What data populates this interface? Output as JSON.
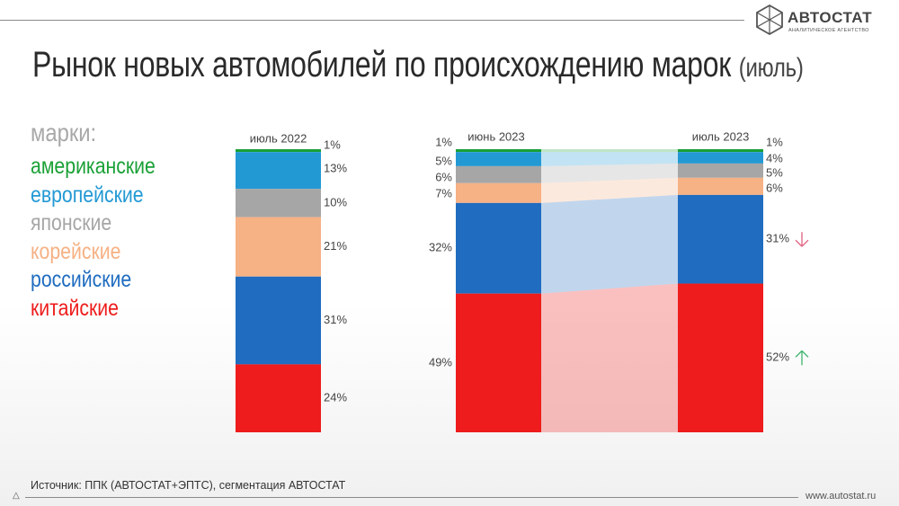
{
  "header": {
    "title": "Рынок новых автомобилей по происхождению марок",
    "title_note": "(июль)"
  },
  "logo": {
    "name": "АВТОСТАТ",
    "subtitle": "АНАЛИТИЧЕСКОЕ АГЕНТСТВО"
  },
  "legend": {
    "title": "марки:",
    "items": [
      {
        "label": "американские",
        "color": "#1aa036"
      },
      {
        "label": "европейские",
        "color": "#2399d4"
      },
      {
        "label": "японские",
        "color": "#a6a6a6"
      },
      {
        "label": "корейские",
        "color": "#f6b184"
      },
      {
        "label": "российские",
        "color": "#1f6cc0"
      },
      {
        "label": "китайские",
        "color": "#ee1c1c"
      }
    ]
  },
  "footer": {
    "source": "Источник: ППК (АВТОСТАТ+ЭПТС), сегментация АВТОСТАТ",
    "site": "www.autostat.ru"
  },
  "chart_data": [
    {
      "type": "bar",
      "stacked": true,
      "categories": [
        "июль 2022"
      ],
      "series": [
        {
          "name": "американские",
          "values": [
            1
          ],
          "label": "1%"
        },
        {
          "name": "европейские",
          "values": [
            13
          ],
          "label": "13%"
        },
        {
          "name": "японские",
          "values": [
            10
          ],
          "label": "10%"
        },
        {
          "name": "корейские",
          "values": [
            21
          ],
          "label": "21%"
        },
        {
          "name": "российские",
          "values": [
            31
          ],
          "label": "31%"
        },
        {
          "name": "китайские",
          "values": [
            24
          ],
          "label": "24%"
        }
      ],
      "ylim": [
        0,
        100
      ]
    },
    {
      "type": "bar",
      "stacked": true,
      "connected": true,
      "categories": [
        "июнь 2023",
        "июль 2023"
      ],
      "series": [
        {
          "name": "американские",
          "values": [
            1,
            1
          ],
          "labels": [
            "1%",
            "1%"
          ]
        },
        {
          "name": "европейские",
          "values": [
            5,
            4
          ],
          "labels": [
            "5%",
            "4%"
          ]
        },
        {
          "name": "японские",
          "values": [
            6,
            5
          ],
          "labels": [
            "6%",
            "5%"
          ]
        },
        {
          "name": "корейские",
          "values": [
            7,
            6
          ],
          "labels": [
            "7%",
            "6%"
          ]
        },
        {
          "name": "российские",
          "values": [
            32,
            31
          ],
          "labels": [
            "32%",
            "31%"
          ]
        },
        {
          "name": "китайские",
          "values": [
            49,
            52
          ],
          "labels": [
            "49%",
            "52%"
          ]
        }
      ],
      "trend_markers": [
        {
          "series": "российские",
          "direction": "down",
          "color": "#e06080"
        },
        {
          "series": "китайские",
          "direction": "up",
          "color": "#3db36b"
        }
      ],
      "ylim": [
        0,
        100
      ]
    }
  ]
}
